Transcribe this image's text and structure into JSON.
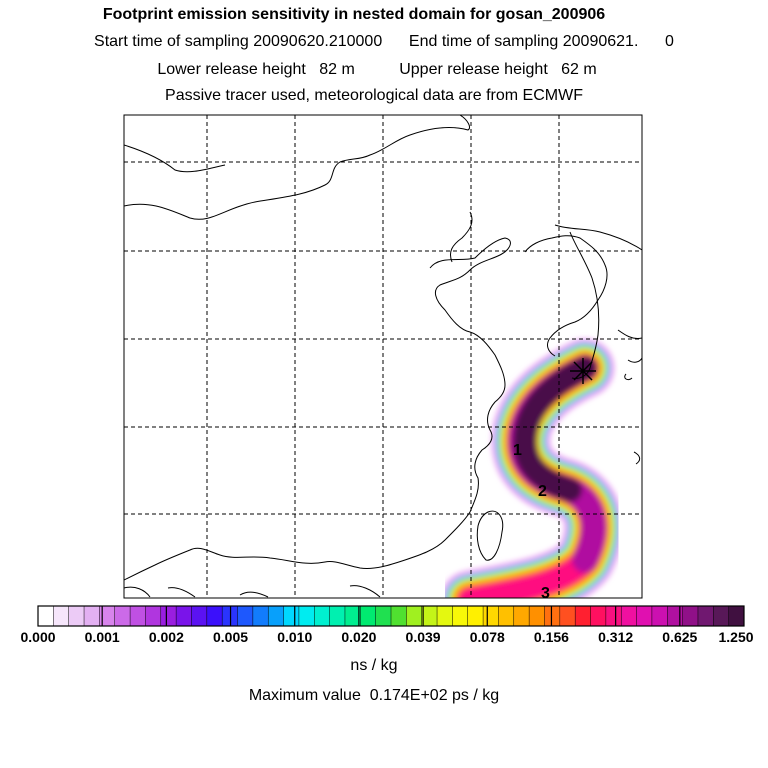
{
  "header": {
    "title": "Footprint emission sensitivity in nested domain for gosan_200906",
    "line2": "Start time of sampling 20090620.210000      End time of sampling 20090621.      0",
    "line3": "Lower release height   82 m          Upper release height   62 m",
    "line4": "Passive tracer used, meteorological data are from ECMWF"
  },
  "map": {
    "receptor_marker": "receptor-star",
    "trajectory_labels": [
      "1",
      "2",
      "3"
    ]
  },
  "colorbar": {
    "tick_labels": [
      "0.000",
      "0.001",
      "0.002",
      "0.005",
      "0.010",
      "0.020",
      "0.039",
      "0.078",
      "0.156",
      "0.312",
      "0.625",
      "1.250"
    ],
    "colors": [
      "#ffffff",
      "#f6e6fb",
      "#eccbf6",
      "#e3b0f2",
      "#d884ec",
      "#cc6ae8",
      "#c050e3",
      "#b036df",
      "#9a1ee0",
      "#7a14ea",
      "#5b12f2",
      "#3b10fb",
      "#2a34fd",
      "#1e58fd",
      "#127cfc",
      "#08a0fb",
      "#00d8ff",
      "#00ecf0",
      "#00f0d0",
      "#00f0b0",
      "#00ee90",
      "#00ea70",
      "#20e050",
      "#50e030",
      "#a0f020",
      "#c4f418",
      "#e4f810",
      "#f8f808",
      "#fff000",
      "#ffd800",
      "#ffc000",
      "#ffa800",
      "#ff9000",
      "#ff7010",
      "#ff5020",
      "#ff2030",
      "#ff1060",
      "#f81080",
      "#f010a0",
      "#e010b0",
      "#cc10b0",
      "#b010a0",
      "#901088",
      "#701870",
      "#581858",
      "#401040"
    ],
    "units": "ns / kg"
  },
  "footer": {
    "max_value": "Maximum value  0.174E+02 ps / kg"
  },
  "colors": {
    "coast": "#000000",
    "grid": "#000000",
    "plume_core": "#4a0a4a",
    "plume_outer": "#ff1080"
  }
}
